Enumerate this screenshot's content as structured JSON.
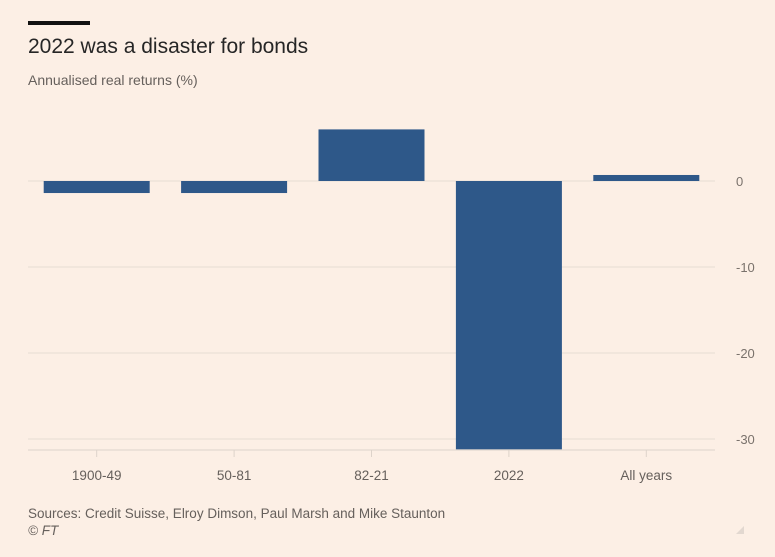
{
  "chart_data": {
    "type": "bar",
    "title": "2022 was a disaster for bonds",
    "subtitle": "Annualised real returns (%)",
    "xlabel": "",
    "ylabel": "",
    "categories": [
      "1900-49",
      "50-81",
      "82-21",
      "2022",
      "All years"
    ],
    "values": [
      -1.4,
      -1.4,
      6.0,
      -31.2,
      0.7
    ],
    "ylim": [
      -31.5,
      8
    ],
    "yticks": [
      0,
      -10,
      -20,
      -30
    ],
    "ytick_labels": [
      "0",
      "-10",
      "-20",
      "-30"
    ],
    "grid": true,
    "y_axis_position": "right",
    "bar_color": "#2e5889",
    "legend": null
  },
  "footer": {
    "source": "Sources: Credit Suisse, Elroy Dimson, Paul Marsh and Mike Staunton",
    "copyright": "© FT"
  }
}
